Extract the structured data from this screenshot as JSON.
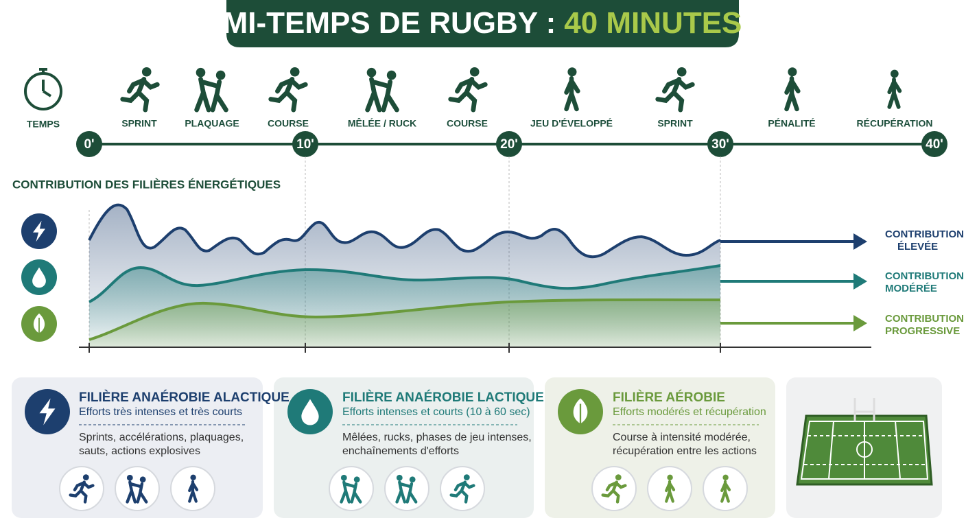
{
  "header": {
    "title": "MI-TEMPS DE RUGBY :",
    "highlight": "40 MINUTES"
  },
  "timeline": {
    "time_label": "TEMPS",
    "actions": [
      "SPRINT",
      "PLAQUAGE",
      "COURSE",
      "MÊLÉE / RUCK",
      "COURSE",
      "JEU D'ÉVELOPPÉ",
      "SPRINT",
      "PÉNALITÉ",
      "RÉCUPÉRATION"
    ],
    "markers": [
      "0'",
      "10'",
      "20'",
      "30'",
      "40'"
    ]
  },
  "energy": {
    "title": "CONTRIBUTION DES FILIÈRES ÉNERGÉTIQUES",
    "levels": [
      [
        "CONTRIBUTION",
        "ÉLEVÉE"
      ],
      [
        "CONTRIBUTION",
        "MODÉRÉE"
      ],
      [
        "CONTRIBUTION",
        "PROGRESSIVE"
      ]
    ]
  },
  "cards": [
    {
      "title": "FILIÈRE ANAÉROBIE ALACTIQUE",
      "subtitle": "Efforts très intenses et très courts",
      "description": [
        "Sprints, accélérations, plaquages,",
        "sauts, actions explosives"
      ]
    },
    {
      "title": "FILIÈRE ANAÉROBIE LACTIQUE",
      "subtitle": "Efforts intenses et courts (10 à 60 sec)",
      "description": [
        "Mêlées, rucks, phases de jeu intenses,",
        "enchaînements d'efforts"
      ]
    },
    {
      "title": "FILIÈRE AÉROBIE",
      "subtitle": "Efforts modérés et récupération",
      "description": [
        "Course à intensité modérée,",
        "récupération entre les actions"
      ]
    }
  ]
}
